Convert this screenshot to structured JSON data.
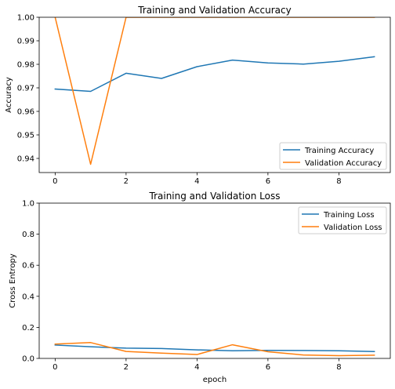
{
  "chart_data": [
    {
      "type": "line",
      "title": "Training and Validation Accuracy",
      "xlabel": "",
      "ylabel": "Accuracy",
      "xlim": [
        -0.45,
        9.45
      ],
      "ylim": [
        0.934,
        1.0
      ],
      "xticks": [
        0,
        2,
        4,
        6,
        8
      ],
      "xtick_labels": [
        "0",
        "2",
        "4",
        "6",
        "8"
      ],
      "yticks": [
        0.94,
        0.95,
        0.96,
        0.97,
        0.98,
        0.99,
        1.0
      ],
      "ytick_labels": [
        "0.94",
        "0.95",
        "0.96",
        "0.97",
        "0.98",
        "0.99",
        "1.00"
      ],
      "legend_position": "lower-right",
      "grid": false,
      "x": [
        0,
        1,
        2,
        3,
        4,
        5,
        6,
        7,
        8,
        9
      ],
      "series": [
        {
          "name": "Training Accuracy",
          "color": "#1f77b4",
          "values": [
            0.9695,
            0.9685,
            0.9762,
            0.974,
            0.979,
            0.9818,
            0.9806,
            0.9801,
            0.9813,
            0.9832
          ]
        },
        {
          "name": "Validation Accuracy",
          "color": "#ff7f0e",
          "values": [
            1.0,
            0.9375,
            1.0,
            1.0,
            1.0,
            1.0,
            1.0,
            1.0,
            1.0,
            1.0
          ]
        }
      ]
    },
    {
      "type": "line",
      "title": "Training and Validation Loss",
      "xlabel": "epoch",
      "ylabel": "Cross Entropy",
      "xlim": [
        -0.45,
        9.45
      ],
      "ylim": [
        0.0,
        1.0
      ],
      "xticks": [
        0,
        2,
        4,
        6,
        8
      ],
      "xtick_labels": [
        "0",
        "2",
        "4",
        "6",
        "8"
      ],
      "yticks": [
        0.0,
        0.2,
        0.4,
        0.6,
        0.8,
        1.0
      ],
      "ytick_labels": [
        "0.0",
        "0.2",
        "0.4",
        "0.6",
        "0.8",
        "1.0"
      ],
      "legend_position": "top-right",
      "grid": false,
      "x": [
        0,
        1,
        2,
        3,
        4,
        5,
        6,
        7,
        8,
        9
      ],
      "series": [
        {
          "name": "Training Loss",
          "color": "#1f77b4",
          "values": [
            0.086,
            0.075,
            0.066,
            0.064,
            0.055,
            0.049,
            0.052,
            0.051,
            0.049,
            0.044
          ]
        },
        {
          "name": "Validation Loss",
          "color": "#ff7f0e",
          "values": [
            0.092,
            0.102,
            0.045,
            0.034,
            0.025,
            0.088,
            0.043,
            0.022,
            0.018,
            0.021
          ]
        }
      ]
    }
  ]
}
